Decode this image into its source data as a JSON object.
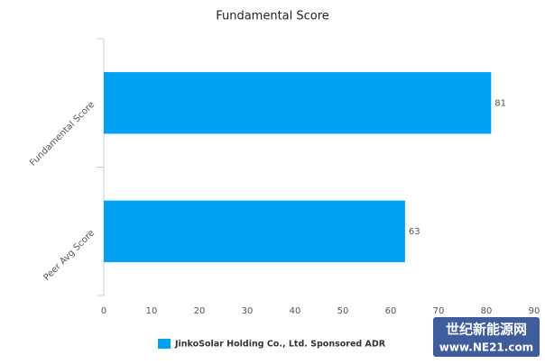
{
  "chart_data": {
    "type": "bar",
    "orientation": "horizontal",
    "title": "Fundamental Score",
    "categories": [
      "Fundamental Score",
      "Peer Avg Score"
    ],
    "series": [
      {
        "name": "JinkoSolar Holding Co., Ltd. Sponsored ADR",
        "color": "#00a1f1",
        "values": [
          81,
          63
        ]
      }
    ],
    "xlim": [
      0,
      90
    ],
    "xticks": [
      0,
      10,
      20,
      30,
      40,
      50,
      60,
      70,
      80,
      90
    ],
    "grid": false,
    "legend": "bottom"
  },
  "watermark": {
    "name": "世纪新能源网",
    "url": "www.NE21.com"
  }
}
